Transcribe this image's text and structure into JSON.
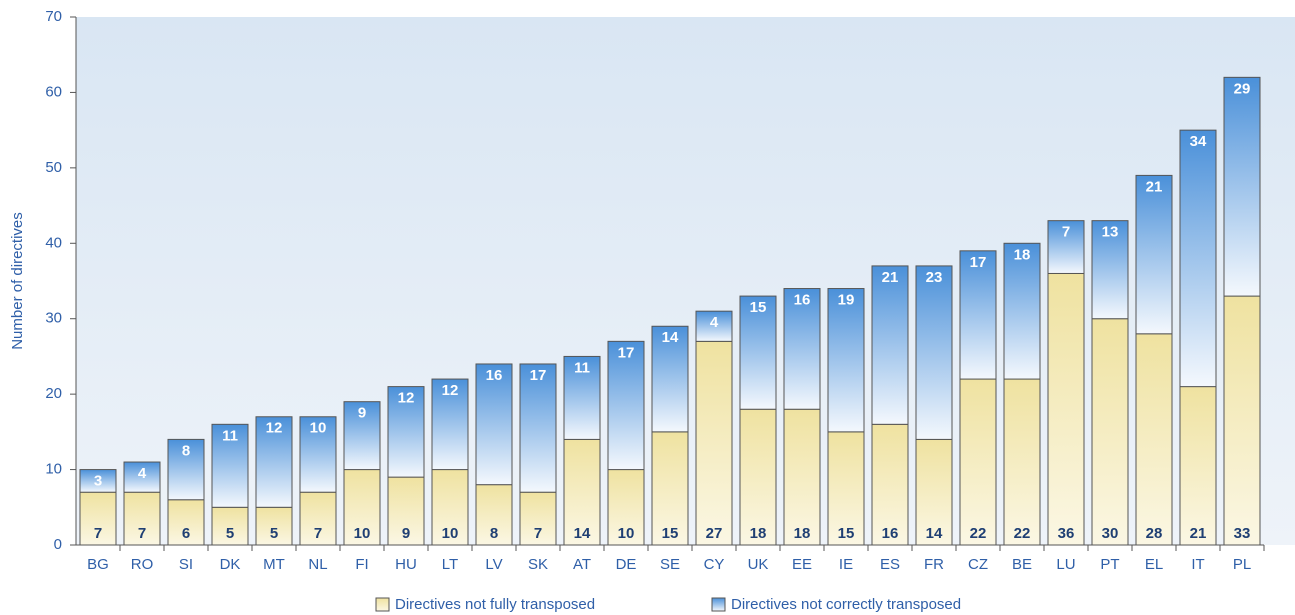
{
  "chart_data": {
    "type": "stacked_bar",
    "y_label": "Number of directives",
    "categories": [
      "BG",
      "RO",
      "SI",
      "DK",
      "MT",
      "NL",
      "FI",
      "HU",
      "LT",
      "LV",
      "SK",
      "AT",
      "DE",
      "SE",
      "CY",
      "UK",
      "EE",
      "IE",
      "ES",
      "FR",
      "CZ",
      "BE",
      "LU",
      "PT",
      "EL",
      "IT",
      "PL"
    ],
    "series": [
      {
        "name": "Directives not fully transposed",
        "color": "#f3e9b0",
        "values": [
          7,
          7,
          6,
          5,
          5,
          7,
          10,
          9,
          10,
          8,
          7,
          14,
          10,
          15,
          27,
          18,
          18,
          15,
          16,
          14,
          22,
          22,
          36,
          30,
          28,
          21,
          33
        ]
      },
      {
        "name": "Directives not correctly transposed",
        "color": "#4a90d9",
        "values": [
          3,
          4,
          8,
          11,
          12,
          10,
          9,
          12,
          12,
          16,
          17,
          11,
          17,
          14,
          4,
          15,
          16,
          19,
          21,
          23,
          17,
          18,
          7,
          13,
          21,
          34,
          29
        ]
      }
    ],
    "ylim": [
      0,
      70
    ],
    "yticks": [
      0,
      10,
      20,
      30,
      40,
      50,
      60,
      70
    ],
    "grid": false
  }
}
